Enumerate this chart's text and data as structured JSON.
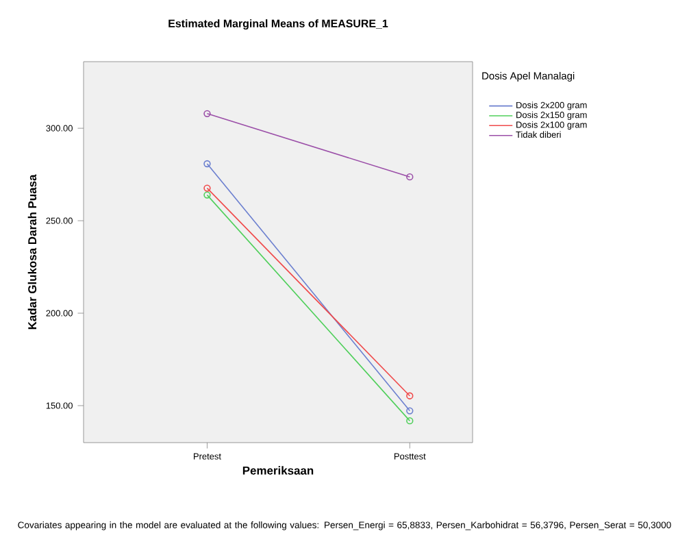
{
  "chart_data": {
    "type": "line",
    "title": "Estimated Marginal Means of MEASURE_1",
    "xlabel": "Pemeriksaan",
    "ylabel": "Kadar Glukosa Darah Puasa",
    "legend_title": "Dosis Apel Manalagi",
    "categories": [
      "Pretest",
      "Posttest"
    ],
    "series": [
      {
        "name": "Dosis 2x200 gram",
        "color": "#6b7fcf",
        "values": [
          280.8,
          147.2
        ]
      },
      {
        "name": "Dosis 2x150 gram",
        "color": "#4fcf5a",
        "values": [
          263.9,
          141.8
        ]
      },
      {
        "name": "Dosis 2x100 gram",
        "color": "#f0494a",
        "values": [
          267.6,
          155.3
        ]
      },
      {
        "name": "Tidak diberi",
        "color": "#9b4fa8",
        "values": [
          307.9,
          273.7
        ]
      }
    ],
    "ylim": [
      130,
      336
    ],
    "yticks": [
      {
        "value": 150,
        "label": "150.00"
      },
      {
        "value": 200,
        "label": "200.00"
      },
      {
        "value": 250,
        "label": "250.00"
      },
      {
        "value": 300,
        "label": "300.00"
      }
    ],
    "legend": "right",
    "marker": "circle",
    "grid": false,
    "annotations": [
      "Covariates appearing in the model are evaluated at the following values: Persen_Energi = 65,8833, Persen_Karbohidrat = 56,3796, Persen_Serat = 50,3000"
    ]
  }
}
